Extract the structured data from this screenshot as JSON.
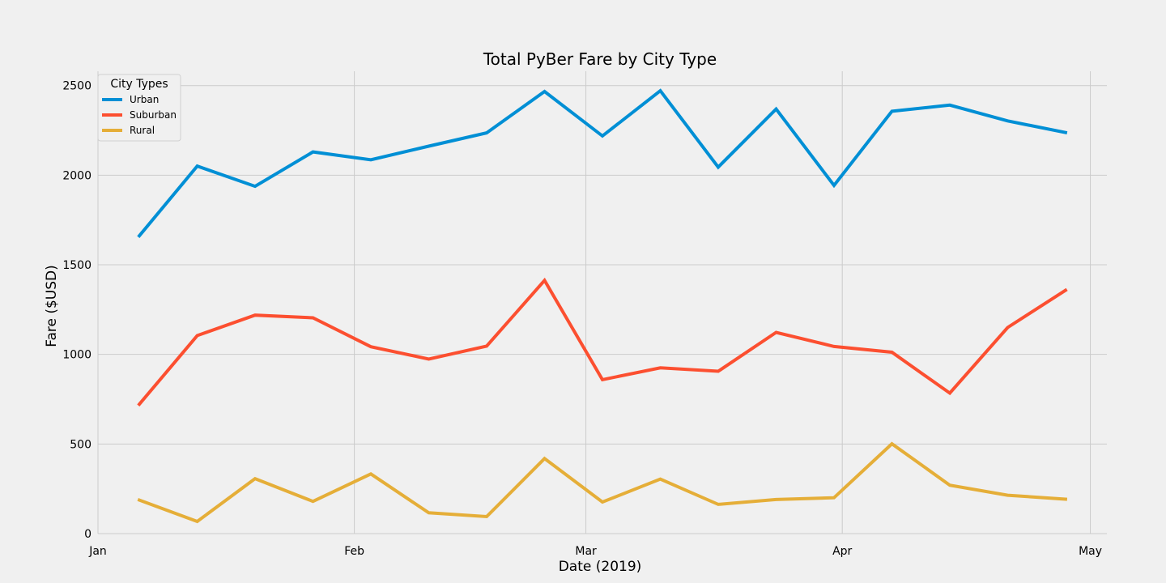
{
  "chart_data": {
    "type": "line",
    "title": "Total PyBer Fare by City Type",
    "xlabel": "Date (2019)",
    "ylabel": "Fare ($USD)",
    "x": [
      "2019-01-06",
      "2019-01-13",
      "2019-01-20",
      "2019-01-27",
      "2019-02-03",
      "2019-02-10",
      "2019-02-17",
      "2019-02-24",
      "2019-03-03",
      "2019-03-10",
      "2019-03-17",
      "2019-03-24",
      "2019-03-31",
      "2019-04-07",
      "2019-04-14",
      "2019-04-21",
      "2019-04-28"
    ],
    "xlim": [
      "2019-01-01",
      "2019-05-03"
    ],
    "x_ticks": [
      {
        "date": "2019-01-01",
        "label": "Jan"
      },
      {
        "date": "2019-02-01",
        "label": "Feb"
      },
      {
        "date": "2019-03-01",
        "label": "Mar"
      },
      {
        "date": "2019-04-01",
        "label": "Apr"
      },
      {
        "date": "2019-05-01",
        "label": "May"
      }
    ],
    "ylim": [
      0,
      2580
    ],
    "y_ticks": [
      0,
      500,
      1000,
      1500,
      2000,
      2500
    ],
    "grid": true,
    "legend": {
      "title": "City Types",
      "placement": "top-left"
    },
    "series": [
      {
        "name": "Urban",
        "color": "#008fd5",
        "values": [
          1662,
          2051,
          1938,
          2130,
          2086,
          2162,
          2236,
          2467,
          2219,
          2471,
          2045,
          2369,
          1943,
          2357,
          2391,
          2303,
          2238
        ]
      },
      {
        "name": "Suburban",
        "color": "#fc4f30",
        "values": [
          722,
          1105,
          1219,
          1204,
          1043,
          974,
          1046,
          1413,
          859,
          925,
          906,
          1123,
          1044,
          1012,
          784,
          1150,
          1358
        ]
      },
      {
        "name": "Rural",
        "color": "#e5ae38",
        "values": [
          187,
          68,
          307,
          180,
          333,
          116,
          95,
          419,
          176,
          304,
          163,
          190,
          200,
          501,
          270,
          214,
          192
        ]
      }
    ]
  }
}
